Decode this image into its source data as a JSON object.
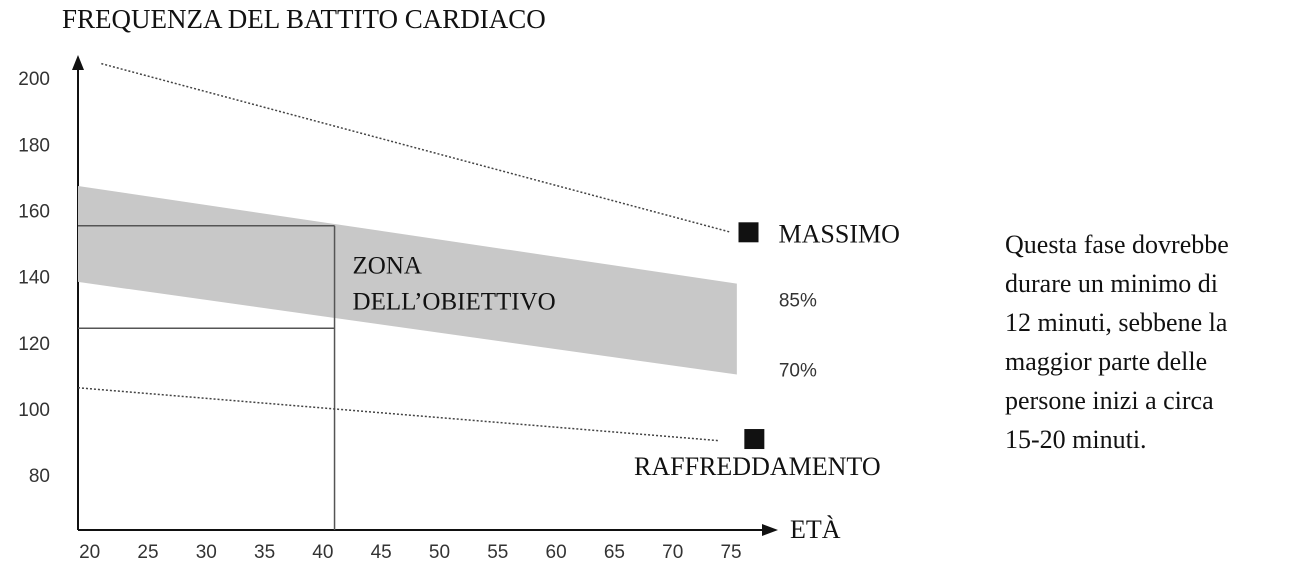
{
  "chart_data": {
    "type": "line",
    "title": "FREQUENZA DEL BATTITO CARDIACO",
    "x_label": "ETÀ",
    "xlim": [
      19,
      78
    ],
    "ylim": [
      64,
      207
    ],
    "xticks": [
      20,
      25,
      30,
      35,
      40,
      45,
      50,
      55,
      60,
      65,
      70,
      75
    ],
    "yticks": [
      80,
      100,
      120,
      140,
      160,
      180,
      200
    ],
    "grid": false,
    "series": [
      {
        "name": "MASSIMO",
        "color": "#444444",
        "x": [
          21,
          75
        ],
        "values": [
          205,
          154
        ],
        "marker_x": 76.5,
        "marker_y": 154
      },
      {
        "name": "RAFFREDDAMENTO",
        "color": "#444444",
        "x": [
          19,
          74
        ],
        "values": [
          107,
          91
        ],
        "marker_x": 77,
        "marker_y": 91.5
      }
    ],
    "band": {
      "color": "#c8c8c8",
      "x": [
        19,
        75.5
      ],
      "upper": [
        168,
        138.5
      ],
      "lower": [
        139,
        111
      ],
      "upper_label": "85%",
      "lower_label": "70%"
    },
    "target_zone": {
      "x": [
        19,
        41
      ],
      "upper": 156,
      "lower": 125,
      "label": [
        "ZONA",
        "DELL’OBIETTIVO"
      ]
    },
    "note": [
      "Questa fase dovrebbe",
      "durare un minimo di",
      "12 minuti, sebbene la",
      "maggior parte delle",
      "persone inizi a circa",
      "15-20 minuti."
    ]
  }
}
